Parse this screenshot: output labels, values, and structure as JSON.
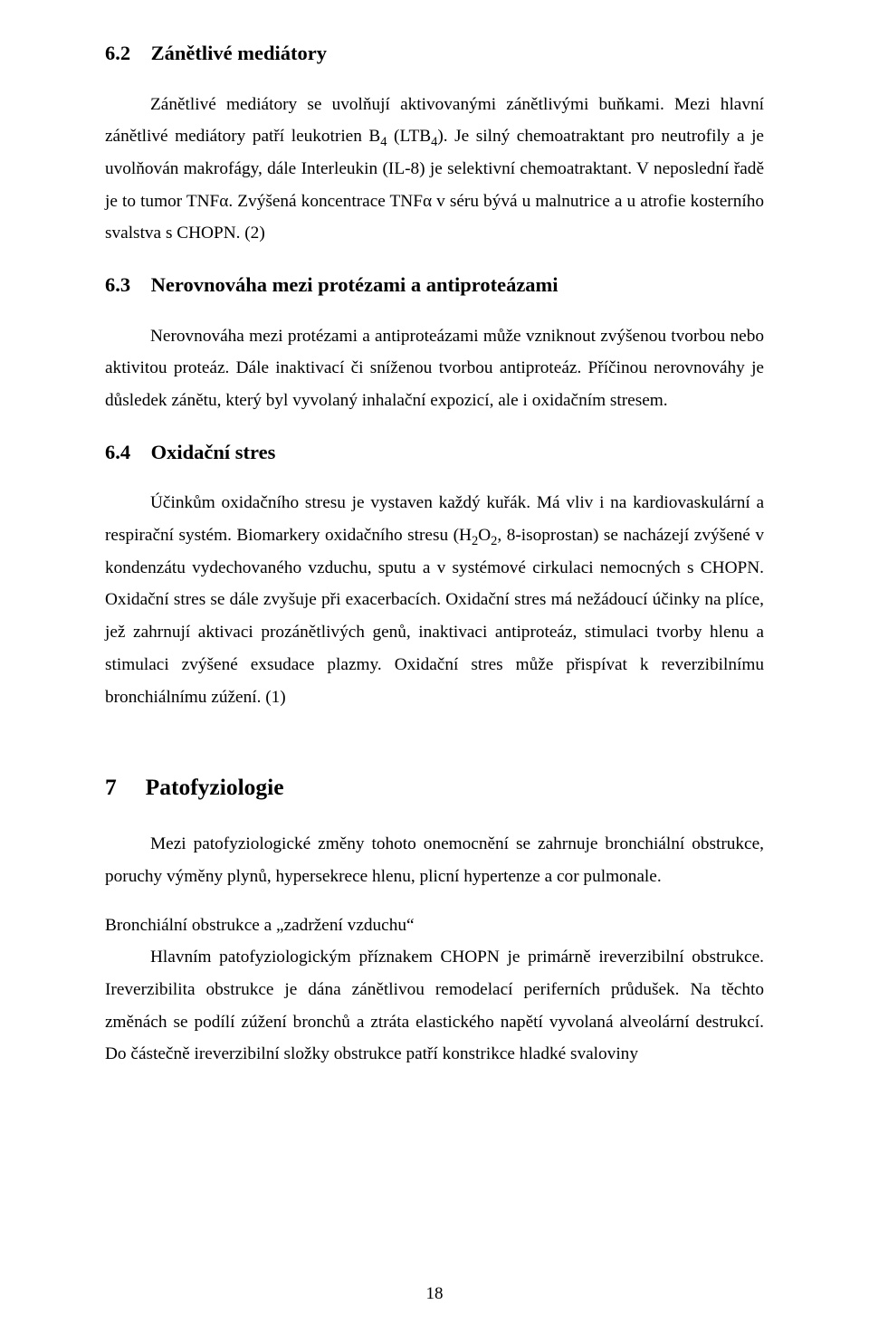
{
  "sections": {
    "s62": {
      "heading_prefix": "6.2",
      "heading": "Zánětlivé mediátory",
      "para1_pre": "Zánětlivé mediátory se uvolňují aktivovanými zánětlivými buňkami. Mezi hlavní zánětlivé mediátory patří leukotrien B",
      "para1_sub1": "4",
      "para1_mid1": " (LTB",
      "para1_sub2": "4",
      "para1_post": "). Je silný chemoatraktant pro neutrofily a je uvolňován makrofágy, dále Interleukin (IL-8) je selektivní chemoatraktant. V neposlední řadě je to tumor TNFα. Zvýšená koncentrace TNFα v séru bývá u malnutrice a u atrofie kosterního svalstva s CHOPN. (2)"
    },
    "s63": {
      "heading_prefix": "6.3",
      "heading": "Nerovnováha mezi protézami a antiproteázami",
      "para1": "Nerovnováha mezi protézami a antiproteázami může vzniknout zvýšenou tvorbou nebo aktivitou proteáz. Dále inaktivací či sníženou tvorbou antiproteáz. Příčinou nerovnováhy je důsledek zánětu, který byl vyvolaný inhalační expozicí, ale i oxidačním stresem."
    },
    "s64": {
      "heading_prefix": "6.4",
      "heading": "Oxidační stres",
      "para1_pre": "Účinkům oxidačního stresu je vystaven každý kuřák. Má vliv i na kardiovaskulární a respirační systém. Biomarkery oxidačního stresu (H",
      "para1_sub1": "2",
      "para1_mid1": "O",
      "para1_sub2": "2",
      "para1_post": ", 8-isoprostan) se nacházejí zvýšené v kondenzátu vydechovaného vzduchu, sputu a v systémové cirkulaci nemocných s CHOPN. Oxidační stres se dále zvyšuje při exacerbacích. Oxidační stres má nežádoucí účinky na plíce, jež zahrnují aktivaci prozánětlivých genů, inaktivaci antiproteáz, stimulaci tvorby hlenu a stimulaci zvýšené exsudace plazmy. Oxidační stres může přispívat k reverzibilnímu bronchiálnímu zúžení. (1)"
    },
    "s7": {
      "heading_prefix": "7",
      "heading": "Patofyziologie",
      "para1": "Mezi patofyziologické změny tohoto onemocnění se zahrnuje bronchiální obstrukce, poruchy výměny plynů, hypersekrece hlenu, plicní hypertenze a cor pulmonale.",
      "sub_a": "Bronchiální obstrukce a „zadržení vzduchu“",
      "para2": "Hlavním patofyziologickým příznakem CHOPN je primárně ireverzibilní obstrukce. Ireverzibilita obstrukce je dána zánětlivou remodelací periferních průdušek. Na těchto změnách se podílí zúžení bronchů a ztráta elastického napětí vyvolaná alveolární destrukcí. Do částečně ireverzibilní složky obstrukce patří konstrikce hladké svaloviny"
    }
  },
  "page_number": "18"
}
